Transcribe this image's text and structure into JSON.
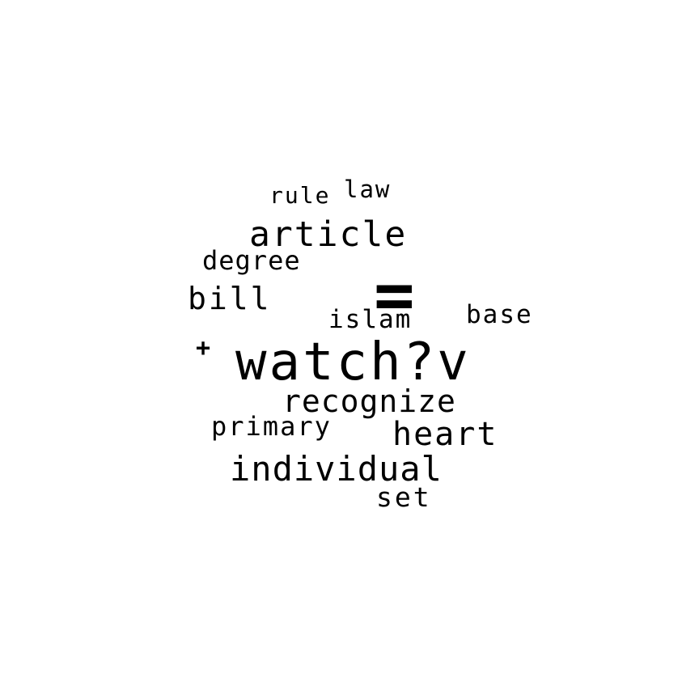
{
  "word_cloud": {
    "text_color": "#000000",
    "background_color": "#ffffff",
    "words": [
      {
        "text": "watch?v",
        "rank": 1
      },
      {
        "text": "=",
        "rank": 2
      },
      {
        "text": "article",
        "rank": 3
      },
      {
        "text": "individual",
        "rank": 4
      },
      {
        "text": "recognize",
        "rank": 5
      },
      {
        "text": "heart",
        "rank": 6
      },
      {
        "text": "bill",
        "rank": 7
      },
      {
        "text": "degree",
        "rank": 8
      },
      {
        "text": "primary",
        "rank": 9
      },
      {
        "text": "base",
        "rank": 10
      },
      {
        "text": "islam",
        "rank": 11
      },
      {
        "text": "set",
        "rank": 12
      },
      {
        "text": "law",
        "rank": 13
      },
      {
        "text": "rule",
        "rank": 14
      },
      {
        "text": "+",
        "rank": 15
      }
    ]
  }
}
